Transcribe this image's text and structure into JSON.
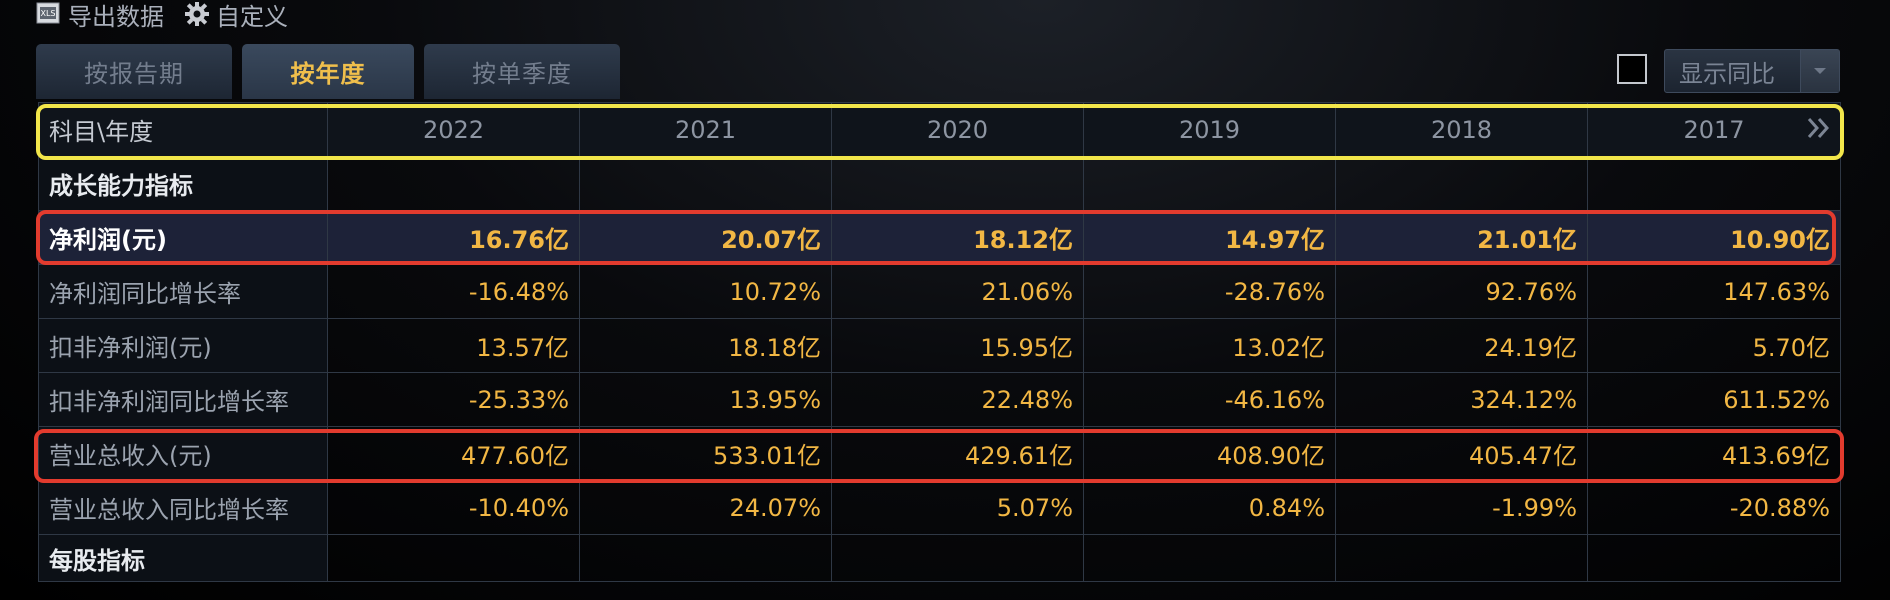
{
  "toolbar": {
    "export_label": "导出数据",
    "export_icon": "export-xls-icon",
    "customize_label": "自定义",
    "customize_icon": "gear-icon"
  },
  "tabs": [
    {
      "label": "按报告期",
      "active": false
    },
    {
      "label": "按年度",
      "active": true
    },
    {
      "label": "按单季度",
      "active": false
    }
  ],
  "yoy": {
    "checked": false,
    "select_label": "显示同比"
  },
  "table": {
    "header_label": "科目\\年度",
    "years": [
      "2022",
      "2021",
      "2020",
      "2019",
      "2018",
      "2017"
    ],
    "rows": [
      {
        "type": "section",
        "label": "成长能力指标",
        "values": [
          "",
          "",
          "",
          "",
          "",
          ""
        ]
      },
      {
        "type": "highlight",
        "label": "净利润(元)",
        "values": [
          "16.76亿",
          "20.07亿",
          "18.12亿",
          "14.97亿",
          "21.01亿",
          "10.90亿"
        ]
      },
      {
        "type": "data",
        "label": "净利润同比增长率",
        "values": [
          "-16.48%",
          "10.72%",
          "21.06%",
          "-28.76%",
          "92.76%",
          "147.63%"
        ]
      },
      {
        "type": "data",
        "label": "扣非净利润(元)",
        "values": [
          "13.57亿",
          "18.18亿",
          "15.95亿",
          "13.02亿",
          "24.19亿",
          "5.70亿"
        ]
      },
      {
        "type": "data",
        "label": "扣非净利润同比增长率",
        "values": [
          "-25.33%",
          "13.95%",
          "22.48%",
          "-46.16%",
          "324.12%",
          "611.52%"
        ]
      },
      {
        "type": "data",
        "label": "营业总收入(元)",
        "values": [
          "477.60亿",
          "533.01亿",
          "429.61亿",
          "408.90亿",
          "405.47亿",
          "413.69亿"
        ]
      },
      {
        "type": "data",
        "label": "营业总收入同比增长率",
        "values": [
          "-10.40%",
          "24.07%",
          "5.07%",
          "0.84%",
          "-1.99%",
          "-20.88%"
        ]
      },
      {
        "type": "section",
        "label": "每股指标",
        "values": [
          "",
          "",
          "",
          "",
          "",
          ""
        ]
      }
    ]
  },
  "colors": {
    "value_text": "#f2b744",
    "active_tab_text": "#f0bf4c",
    "yellow_outline": "#f2e64a",
    "red_outline": "#e23b2e"
  }
}
